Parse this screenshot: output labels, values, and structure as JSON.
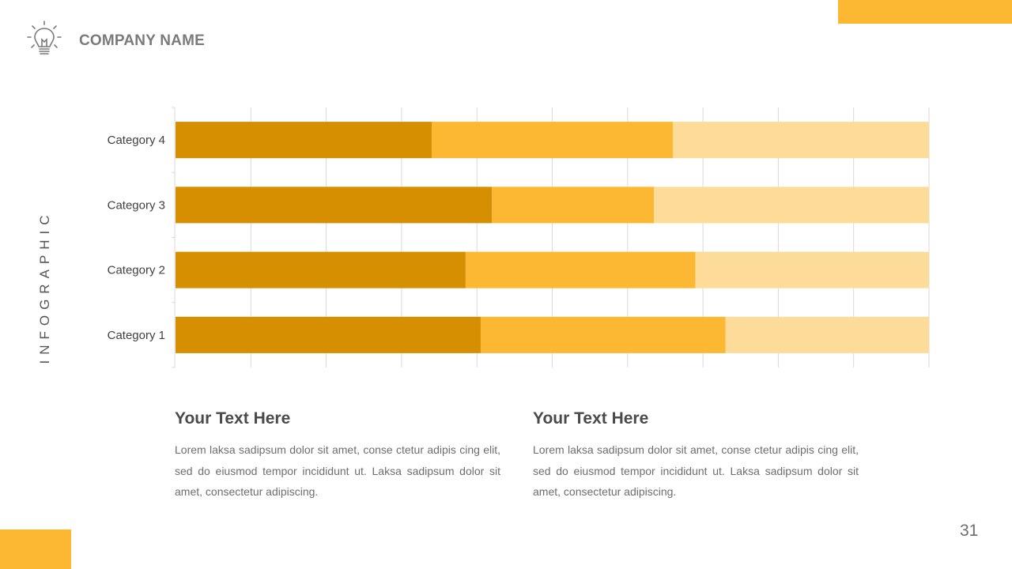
{
  "header": {
    "logo_icon": "lightbulb-icon",
    "company_name": "COMPANY NAME"
  },
  "side_label": "INFOGRAPHIC",
  "colors": {
    "accent": "#FDB833",
    "series_dark": "#D68F00",
    "series_mid": "#FDB833",
    "series_light": "#FDDC9A",
    "grid": "#D9D9D9"
  },
  "chart_data": {
    "type": "bar",
    "orientation": "horizontal",
    "stacked": true,
    "categories": [
      "Category 1",
      "Category 2",
      "Category 3",
      "Category 4"
    ],
    "series": [
      {
        "values": [
          40.5,
          38.5,
          42,
          34
        ]
      },
      {
        "values": [
          32.5,
          30.5,
          21.5,
          32
        ]
      },
      {
        "values": [
          27,
          31,
          36.5,
          34
        ]
      }
    ],
    "xlim": [
      0,
      100
    ],
    "x_gridlines": 10,
    "grid": true,
    "legend": "none"
  },
  "text_blocks": [
    {
      "title": "Your Text Here",
      "body": "Lorem laksa sadipsum dolor sit amet, conse ctetur adipis cing elit, sed do eiusmod tempor incididunt ut. Laksa sadipsum dolor sit amet, consectetur adipiscing."
    },
    {
      "title": "Your Text Here",
      "body": "Lorem laksa sadipsum dolor sit amet, conse ctetur adipis cing elit, sed do eiusmod tempor incididunt ut. Laksa sadipsum dolor sit amet, consectetur adipiscing."
    }
  ],
  "page_number": "31"
}
